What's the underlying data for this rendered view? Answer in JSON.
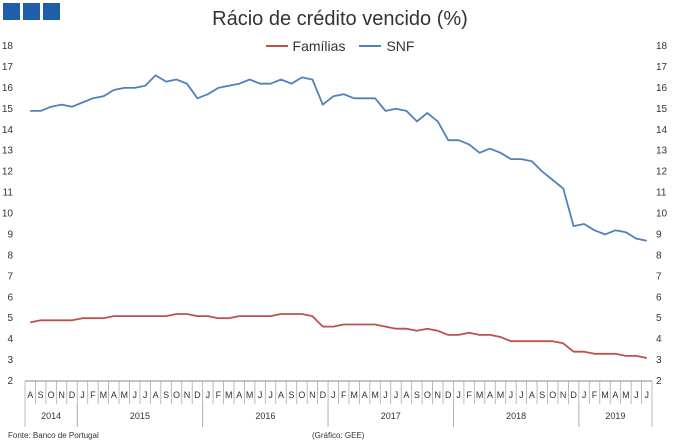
{
  "chart_data": {
    "type": "line",
    "title": "Rácio de crédito vencido (%)",
    "ylim": [
      2,
      18
    ],
    "yticks": [
      2,
      3,
      4,
      5,
      6,
      7,
      8,
      9,
      10,
      11,
      12,
      13,
      14,
      15,
      16,
      17,
      18
    ],
    "month_labels": [
      "A",
      "S",
      "O",
      "N",
      "D",
      "J",
      "F",
      "M",
      "A",
      "M",
      "J",
      "J",
      "A",
      "S",
      "O",
      "N",
      "D",
      "J",
      "F",
      "M",
      "A",
      "M",
      "J",
      "J",
      "A",
      "S",
      "O",
      "N",
      "D",
      "J",
      "F",
      "M",
      "A",
      "M",
      "J",
      "J",
      "A",
      "S",
      "O",
      "N",
      "D",
      "J",
      "F",
      "M",
      "A",
      "M",
      "J",
      "J",
      "A",
      "S",
      "O",
      "N",
      "D",
      "J",
      "F",
      "M",
      "A",
      "M",
      "J",
      "J"
    ],
    "years": [
      {
        "label": "2014",
        "start": 0,
        "count": 5
      },
      {
        "label": "2015",
        "start": 5,
        "count": 12
      },
      {
        "label": "2016",
        "start": 17,
        "count": 12
      },
      {
        "label": "2017",
        "start": 29,
        "count": 12
      },
      {
        "label": "2018",
        "start": 41,
        "count": 12
      },
      {
        "label": "2019",
        "start": 53,
        "count": 7
      }
    ],
    "series": [
      {
        "name": "Famílias",
        "color": "#c0504d",
        "values": [
          4.8,
          4.9,
          4.9,
          4.9,
          4.9,
          5.0,
          5.0,
          5.0,
          5.1,
          5.1,
          5.1,
          5.1,
          5.1,
          5.1,
          5.2,
          5.2,
          5.1,
          5.1,
          5.0,
          5.0,
          5.1,
          5.1,
          5.1,
          5.1,
          5.2,
          5.2,
          5.2,
          5.1,
          4.6,
          4.6,
          4.7,
          4.7,
          4.7,
          4.7,
          4.6,
          4.5,
          4.5,
          4.4,
          4.5,
          4.4,
          4.2,
          4.2,
          4.3,
          4.2,
          4.2,
          4.1,
          3.9,
          3.9,
          3.9,
          3.9,
          3.9,
          3.8,
          3.4,
          3.4,
          3.3,
          3.3,
          3.3,
          3.2,
          3.2,
          3.1
        ]
      },
      {
        "name": "SNF",
        "color": "#4f81bd",
        "values": [
          14.9,
          14.9,
          15.1,
          15.2,
          15.1,
          15.3,
          15.5,
          15.6,
          15.9,
          16.0,
          16.0,
          16.1,
          16.6,
          16.3,
          16.4,
          16.2,
          15.5,
          15.7,
          16.0,
          16.1,
          16.2,
          16.4,
          16.2,
          16.2,
          16.4,
          16.2,
          16.5,
          16.4,
          15.2,
          15.6,
          15.7,
          15.5,
          15.5,
          15.5,
          14.9,
          15.0,
          14.9,
          14.4,
          14.8,
          14.4,
          13.5,
          13.5,
          13.3,
          12.9,
          13.1,
          12.9,
          12.6,
          12.6,
          12.5,
          12.0,
          11.6,
          11.2,
          9.4,
          9.5,
          9.2,
          9.0,
          9.2,
          9.1,
          8.8,
          8.7
        ]
      }
    ]
  },
  "footer": {
    "source": "Fonte: Banco de Portugal",
    "credit": "(Gráfico: GEE)"
  }
}
